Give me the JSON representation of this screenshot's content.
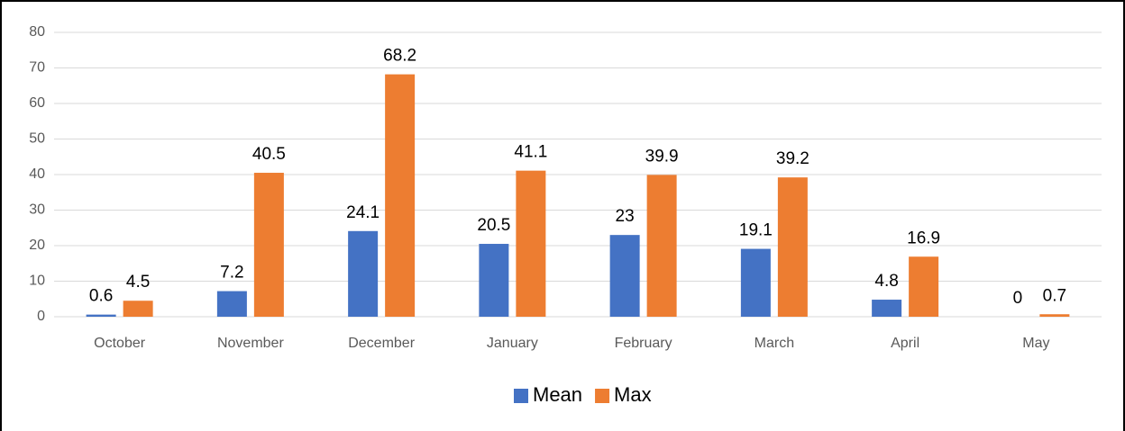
{
  "chart_data": {
    "type": "bar",
    "categories": [
      "October",
      "November",
      "December",
      "January",
      "February",
      "March",
      "April",
      "May"
    ],
    "series": [
      {
        "name": "Mean",
        "color": "#4472c4",
        "values": [
          0.6,
          7.2,
          24.1,
          20.5,
          23,
          19.1,
          4.8,
          0
        ]
      },
      {
        "name": "Max",
        "color": "#ed7d31",
        "values": [
          4.5,
          40.5,
          68.2,
          41.1,
          39.9,
          39.2,
          16.9,
          0.7
        ]
      }
    ],
    "ylim": [
      0,
      80
    ],
    "yticks": [
      0,
      10,
      20,
      30,
      40,
      50,
      60,
      70,
      80
    ],
    "grid": true,
    "legend": "bottom"
  }
}
